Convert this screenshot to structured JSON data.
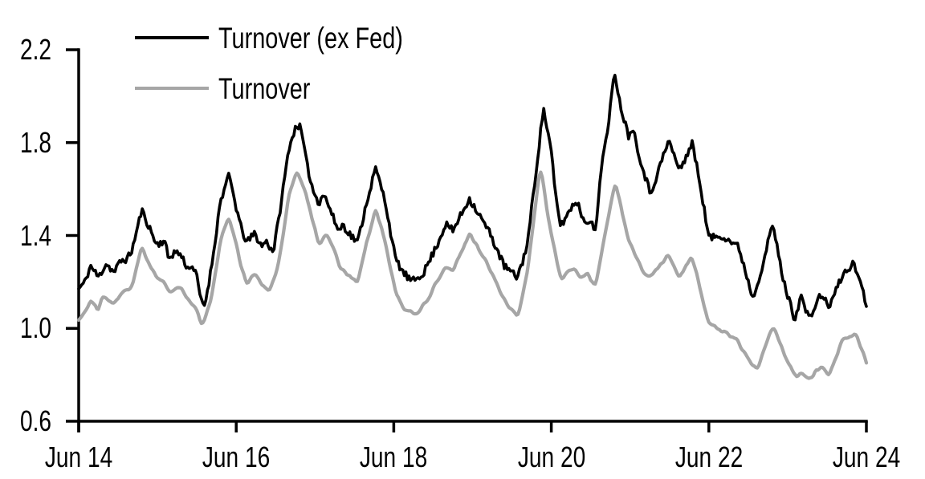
{
  "figure": {
    "background": "#ffffff",
    "legend": {
      "items": [
        {
          "label": "Turnover (ex Fed)",
          "color": "#000000"
        },
        {
          "label": "Turnover",
          "color": "#a6a6a6"
        }
      ]
    },
    "y_axis": {
      "tick_labels": [
        "0.6",
        "1.0",
        "1.4",
        "1.8",
        "2.2"
      ]
    },
    "x_axis": {
      "tick_labels": [
        "Jun 14",
        "Jun 16",
        "Jun 18",
        "Jun 20",
        "Jun 22",
        "Jun 24"
      ]
    }
  },
  "chart_data": {
    "type": "line",
    "title": "",
    "xlabel": "",
    "ylabel": "",
    "x_unit": "years since Jun 2014 (ticks mark June of each labelled year)",
    "x_tick_labels": [
      "Jun 14",
      "Jun 16",
      "Jun 18",
      "Jun 20",
      "Jun 22",
      "Jun 24"
    ],
    "x_tick_positions": [
      0,
      2,
      4,
      6,
      8,
      10
    ],
    "y_ticks": [
      0.6,
      1.0,
      1.4,
      1.8,
      2.2
    ],
    "xlim": [
      0,
      10
    ],
    "ylim": [
      0.6,
      2.2
    ],
    "grid": false,
    "legend_position": "top-left-inside",
    "axis_color": "#000000",
    "series": [
      {
        "name": "Turnover (ex Fed)",
        "color": "#000000",
        "line_width": 3.6,
        "anchor_points": [
          [
            0.0,
            1.17
          ],
          [
            0.08,
            1.2
          ],
          [
            0.15,
            1.27
          ],
          [
            0.25,
            1.22
          ],
          [
            0.35,
            1.28
          ],
          [
            0.45,
            1.24
          ],
          [
            0.53,
            1.29
          ],
          [
            0.62,
            1.3
          ],
          [
            0.68,
            1.34
          ],
          [
            0.8,
            1.51
          ],
          [
            0.89,
            1.44
          ],
          [
            0.99,
            1.36
          ],
          [
            1.09,
            1.38
          ],
          [
            1.14,
            1.3
          ],
          [
            1.22,
            1.33
          ],
          [
            1.29,
            1.32
          ],
          [
            1.4,
            1.25
          ],
          [
            1.43,
            1.28
          ],
          [
            1.5,
            1.22
          ],
          [
            1.56,
            1.11
          ],
          [
            1.6,
            1.1
          ],
          [
            1.68,
            1.25
          ],
          [
            1.8,
            1.55
          ],
          [
            1.91,
            1.66
          ],
          [
            2.0,
            1.52
          ],
          [
            2.07,
            1.42
          ],
          [
            2.14,
            1.37
          ],
          [
            2.23,
            1.41
          ],
          [
            2.33,
            1.35
          ],
          [
            2.37,
            1.38
          ],
          [
            2.47,
            1.33
          ],
          [
            2.54,
            1.47
          ],
          [
            2.67,
            1.78
          ],
          [
            2.77,
            1.88
          ],
          [
            2.82,
            1.86
          ],
          [
            2.9,
            1.7
          ],
          [
            2.98,
            1.59
          ],
          [
            3.05,
            1.54
          ],
          [
            3.1,
            1.58
          ],
          [
            3.15,
            1.55
          ],
          [
            3.25,
            1.46
          ],
          [
            3.31,
            1.42
          ],
          [
            3.35,
            1.45
          ],
          [
            3.43,
            1.41
          ],
          [
            3.54,
            1.37
          ],
          [
            3.66,
            1.55
          ],
          [
            3.77,
            1.69
          ],
          [
            3.89,
            1.55
          ],
          [
            4.02,
            1.3
          ],
          [
            4.12,
            1.24
          ],
          [
            4.23,
            1.2
          ],
          [
            4.38,
            1.24
          ],
          [
            4.55,
            1.36
          ],
          [
            4.66,
            1.45
          ],
          [
            4.75,
            1.42
          ],
          [
            4.96,
            1.56
          ],
          [
            5.1,
            1.48
          ],
          [
            5.22,
            1.41
          ],
          [
            5.4,
            1.27
          ],
          [
            5.56,
            1.22
          ],
          [
            5.62,
            1.27
          ],
          [
            5.7,
            1.37
          ],
          [
            5.9,
            1.95
          ],
          [
            6.0,
            1.76
          ],
          [
            6.05,
            1.58
          ],
          [
            6.12,
            1.44
          ],
          [
            6.27,
            1.53
          ],
          [
            6.32,
            1.55
          ],
          [
            6.42,
            1.46
          ],
          [
            6.49,
            1.47
          ],
          [
            6.56,
            1.41
          ],
          [
            6.64,
            1.72
          ],
          [
            6.72,
            1.85
          ],
          [
            6.8,
            2.12
          ],
          [
            6.87,
            1.97
          ],
          [
            6.98,
            1.83
          ],
          [
            7.03,
            1.87
          ],
          [
            7.15,
            1.7
          ],
          [
            7.26,
            1.58
          ],
          [
            7.49,
            1.81
          ],
          [
            7.63,
            1.68
          ],
          [
            7.79,
            1.8
          ],
          [
            7.9,
            1.6
          ],
          [
            8.0,
            1.39
          ],
          [
            8.17,
            1.4
          ],
          [
            8.38,
            1.35
          ],
          [
            8.56,
            1.13
          ],
          [
            8.68,
            1.27
          ],
          [
            8.81,
            1.45
          ],
          [
            8.95,
            1.2
          ],
          [
            9.09,
            1.04
          ],
          [
            9.17,
            1.14
          ],
          [
            9.27,
            1.04
          ],
          [
            9.43,
            1.15
          ],
          [
            9.52,
            1.09
          ],
          [
            9.7,
            1.23
          ],
          [
            9.83,
            1.28
          ],
          [
            9.93,
            1.2
          ],
          [
            10.0,
            1.1
          ]
        ]
      },
      {
        "name": "Turnover",
        "color": "#a6a6a6",
        "line_width": 4.2,
        "anchor_points": [
          [
            0.0,
            1.03
          ],
          [
            0.08,
            1.07
          ],
          [
            0.15,
            1.12
          ],
          [
            0.25,
            1.08
          ],
          [
            0.31,
            1.14
          ],
          [
            0.45,
            1.1
          ],
          [
            0.53,
            1.15
          ],
          [
            0.68,
            1.18
          ],
          [
            0.8,
            1.35
          ],
          [
            0.89,
            1.28
          ],
          [
            0.99,
            1.22
          ],
          [
            1.09,
            1.2
          ],
          [
            1.14,
            1.16
          ],
          [
            1.29,
            1.18
          ],
          [
            1.4,
            1.12
          ],
          [
            1.5,
            1.08
          ],
          [
            1.57,
            1.01
          ],
          [
            1.68,
            1.12
          ],
          [
            1.8,
            1.38
          ],
          [
            1.91,
            1.48
          ],
          [
            2.0,
            1.36
          ],
          [
            2.07,
            1.26
          ],
          [
            2.14,
            1.19
          ],
          [
            2.23,
            1.24
          ],
          [
            2.33,
            1.19
          ],
          [
            2.42,
            1.16
          ],
          [
            2.54,
            1.28
          ],
          [
            2.67,
            1.58
          ],
          [
            2.77,
            1.68
          ],
          [
            2.87,
            1.6
          ],
          [
            2.98,
            1.45
          ],
          [
            3.05,
            1.36
          ],
          [
            3.15,
            1.41
          ],
          [
            3.25,
            1.33
          ],
          [
            3.31,
            1.26
          ],
          [
            3.43,
            1.23
          ],
          [
            3.54,
            1.19
          ],
          [
            3.66,
            1.38
          ],
          [
            3.77,
            1.51
          ],
          [
            3.89,
            1.38
          ],
          [
            4.02,
            1.16
          ],
          [
            4.12,
            1.09
          ],
          [
            4.23,
            1.07
          ],
          [
            4.28,
            1.06
          ],
          [
            4.38,
            1.1
          ],
          [
            4.55,
            1.2
          ],
          [
            4.66,
            1.27
          ],
          [
            4.75,
            1.25
          ],
          [
            4.96,
            1.41
          ],
          [
            5.1,
            1.33
          ],
          [
            5.22,
            1.26
          ],
          [
            5.4,
            1.12
          ],
          [
            5.58,
            1.05
          ],
          [
            5.7,
            1.25
          ],
          [
            5.86,
            1.7
          ],
          [
            6.0,
            1.4
          ],
          [
            6.12,
            1.21
          ],
          [
            6.27,
            1.26
          ],
          [
            6.37,
            1.22
          ],
          [
            6.45,
            1.24
          ],
          [
            6.56,
            1.18
          ],
          [
            6.72,
            1.47
          ],
          [
            6.81,
            1.63
          ],
          [
            6.98,
            1.38
          ],
          [
            7.15,
            1.25
          ],
          [
            7.26,
            1.22
          ],
          [
            7.49,
            1.32
          ],
          [
            7.63,
            1.22
          ],
          [
            7.79,
            1.31
          ],
          [
            7.9,
            1.15
          ],
          [
            8.0,
            1.02
          ],
          [
            8.17,
            0.99
          ],
          [
            8.35,
            0.95
          ],
          [
            8.61,
            0.82
          ],
          [
            8.81,
            1.01
          ],
          [
            8.99,
            0.86
          ],
          [
            9.12,
            0.79
          ],
          [
            9.2,
            0.81
          ],
          [
            9.27,
            0.78
          ],
          [
            9.43,
            0.84
          ],
          [
            9.52,
            0.79
          ],
          [
            9.7,
            0.95
          ],
          [
            9.86,
            0.98
          ],
          [
            10.0,
            0.85
          ]
        ]
      }
    ],
    "render_hints": {
      "samples_per_year": 52,
      "noise_seed": 11,
      "noise_amplitude": [
        0.016,
        0.01
      ],
      "smoothing_passes": [
        0,
        1
      ]
    }
  }
}
